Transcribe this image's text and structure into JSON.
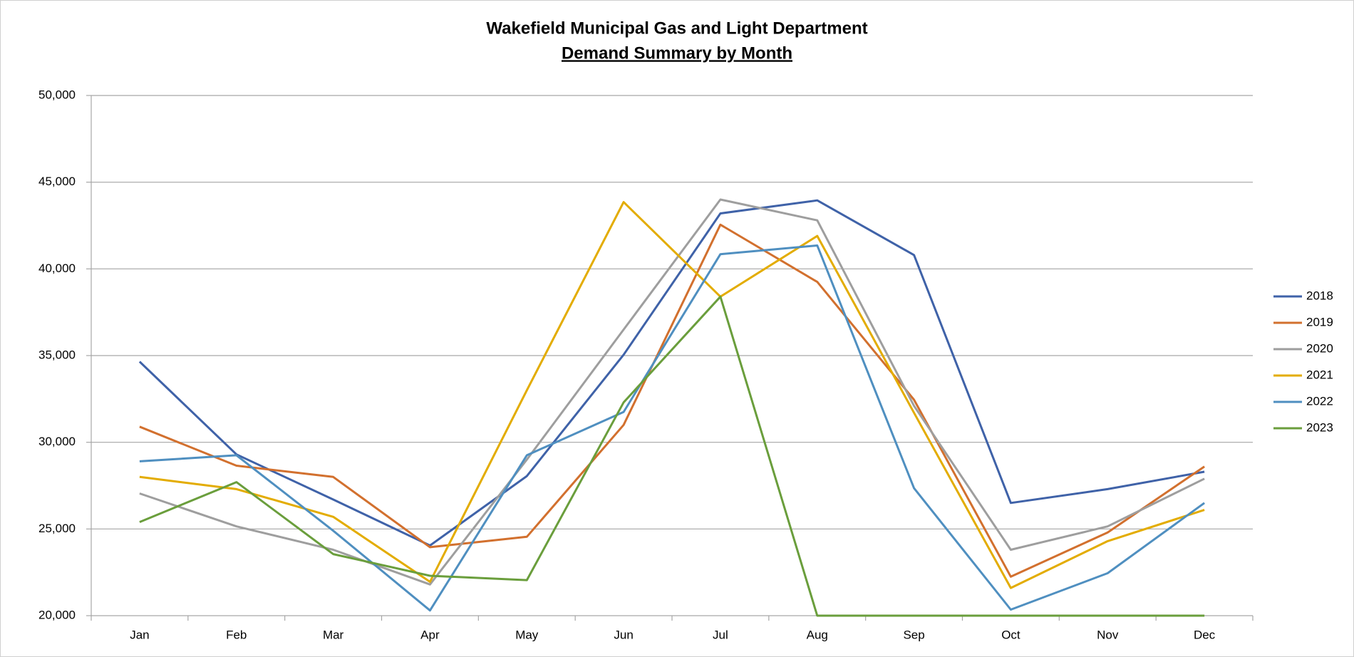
{
  "chart_data": {
    "type": "line",
    "title": "Wakefield Municipal Gas and Light Department",
    "subtitle": "Demand Summary by Month",
    "categories": [
      "Jan",
      "Feb",
      "Mar",
      "Apr",
      "May",
      "Jun",
      "Jul",
      "Aug",
      "Sep",
      "Oct",
      "Nov",
      "Dec"
    ],
    "series": [
      {
        "name": "2018",
        "color": "#3f62a8",
        "values": [
          34650,
          29300,
          26700,
          24050,
          28050,
          35050,
          43200,
          43950,
          40800,
          26500,
          27300,
          28300
        ]
      },
      {
        "name": "2019",
        "color": "#d2702e",
        "values": [
          30900,
          28650,
          28000,
          23950,
          24550,
          31000,
          42550,
          39250,
          32450,
          22250,
          24800,
          28600
        ]
      },
      {
        "name": "2020",
        "color": "#9e9e9e",
        "values": [
          27050,
          25150,
          23800,
          21800,
          29000,
          36500,
          44000,
          42800,
          32100,
          23800,
          25150,
          27900
        ]
      },
      {
        "name": "2021",
        "color": "#e3ac00",
        "values": [
          28000,
          27300,
          25700,
          21950,
          33000,
          43850,
          38400,
          41900,
          31700,
          21600,
          24300,
          26100
        ]
      },
      {
        "name": "2022",
        "color": "#4f8fc0",
        "values": [
          28900,
          29250,
          24900,
          20300,
          29250,
          31750,
          40850,
          41350,
          27350,
          20350,
          22450,
          26500
        ]
      },
      {
        "name": "2023",
        "color": "#6a9e3c",
        "values": [
          25400,
          27700,
          23550,
          22300,
          22050,
          32300,
          38400,
          20000,
          20000,
          20000,
          20000,
          20000
        ]
      }
    ],
    "ylim": [
      20000,
      50000
    ],
    "yticks": [
      {
        "value": 20000,
        "label": "20,000"
      },
      {
        "value": 25000,
        "label": "25,000"
      },
      {
        "value": 30000,
        "label": "30,000"
      },
      {
        "value": 35000,
        "label": "35,000"
      },
      {
        "value": 40000,
        "label": "40,000"
      },
      {
        "value": 45000,
        "label": "45,000"
      },
      {
        "value": 50000,
        "label": "50,000"
      }
    ],
    "grid": true,
    "legend": "right"
  }
}
